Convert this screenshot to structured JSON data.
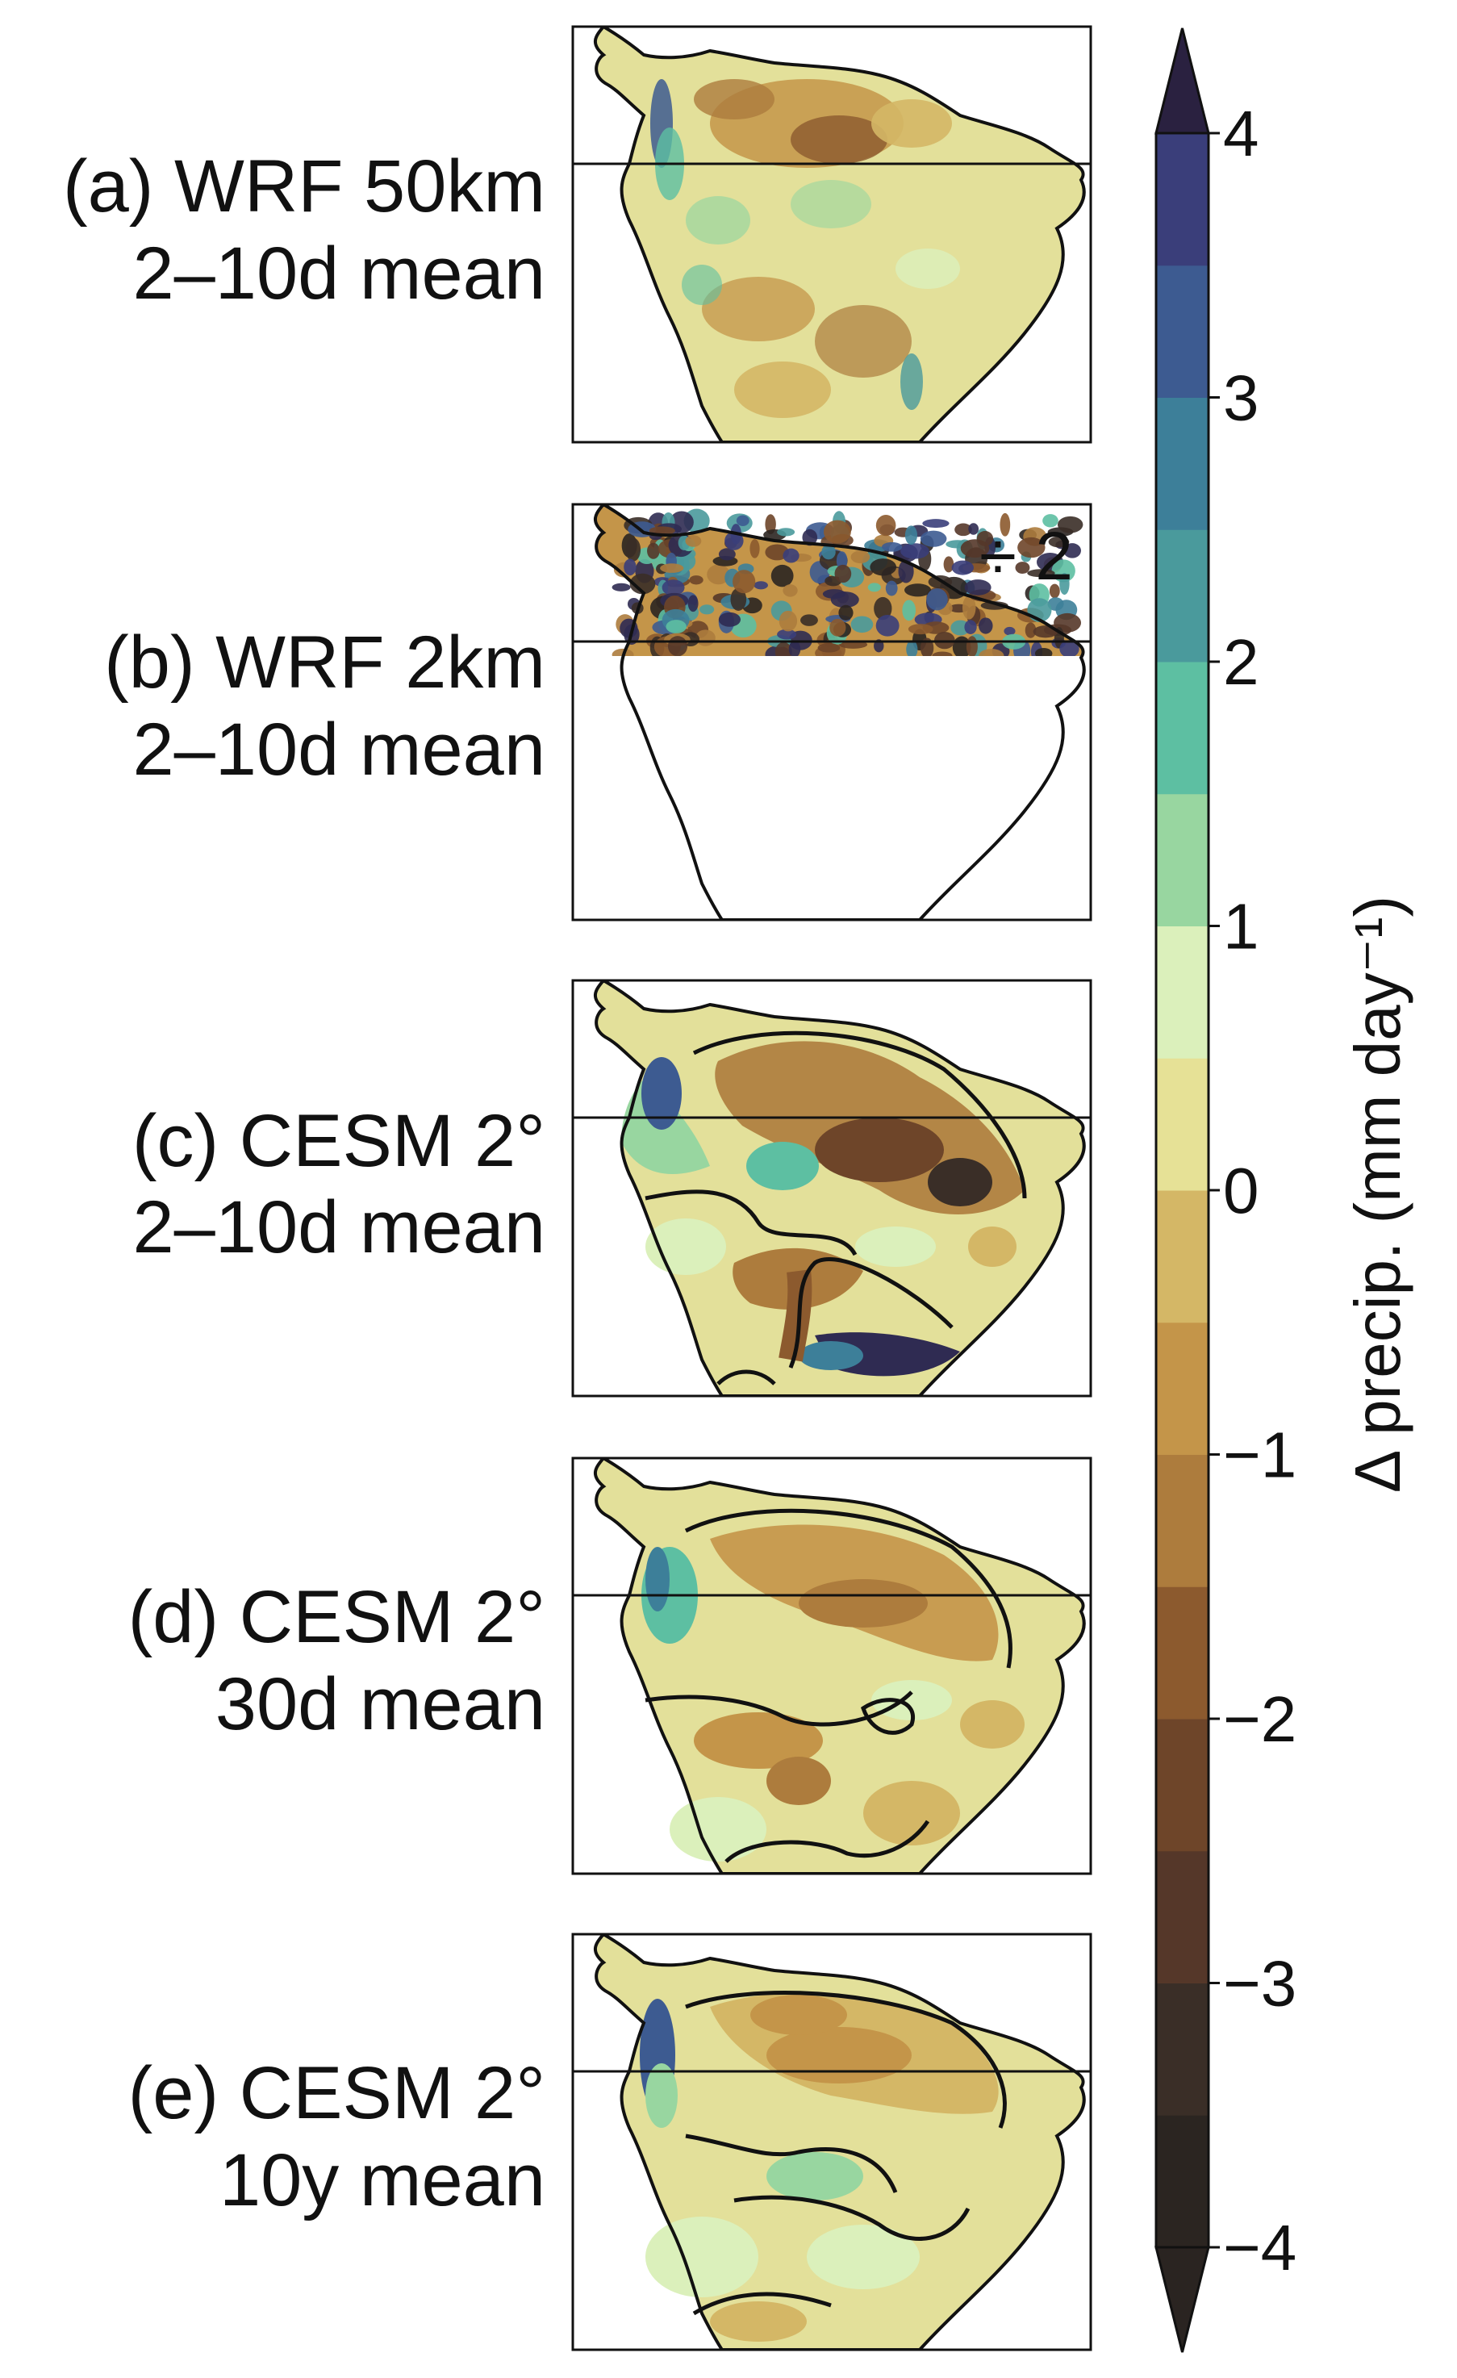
{
  "panels": [
    {
      "id": "a",
      "line1": "(a) WRF 50km",
      "line2": "2–10d mean",
      "annotation": ""
    },
    {
      "id": "b",
      "line1": "(b) WRF 2km",
      "line2": "2–10d mean",
      "annotation": "÷ 2"
    },
    {
      "id": "c",
      "line1": "(c) CESM 2°",
      "line2": "2–10d mean",
      "annotation": ""
    },
    {
      "id": "d",
      "line1": "(d) CESM 2°",
      "line2": "30d mean",
      "annotation": ""
    },
    {
      "id": "e",
      "line1": "(e) CESM 2°",
      "line2": "10y mean",
      "annotation": ""
    }
  ],
  "colorbar": {
    "label": "Δ precip. (mm day⁻¹)",
    "min": -4,
    "max": 4,
    "step": 0.5,
    "extend": "both",
    "ticks": [
      {
        "value": 4,
        "label": "4"
      },
      {
        "value": 3,
        "label": "3"
      },
      {
        "value": 2,
        "label": "2"
      },
      {
        "value": 1,
        "label": "1"
      },
      {
        "value": 0,
        "label": "0"
      },
      {
        "value": -1,
        "label": "−1"
      },
      {
        "value": -2,
        "label": "−2"
      },
      {
        "value": -3,
        "label": "−3"
      },
      {
        "value": -4,
        "label": "−4"
      }
    ],
    "colors": [
      "#2b2521",
      "#3a2e27",
      "#553729",
      "#6e4529",
      "#8c5a2e",
      "#ad7c3d",
      "#c49549",
      "#d4b766",
      "#e6e196",
      "#dbf0bb",
      "#98d6a0",
      "#5dbfa2",
      "#4a9a9c",
      "#3d7f99",
      "#3d5b91",
      "#3a3e7a",
      "#2f2b52"
    ],
    "over_color": "#2a2140",
    "under_color": "#2a2421"
  },
  "land_color": "#e3e09a",
  "chart_data": {
    "type": "heatmap",
    "variable": "Δ precip.",
    "units": "mm day⁻¹",
    "levels": [
      -4,
      -3.5,
      -3,
      -2.5,
      -2,
      -1.5,
      -1,
      -0.5,
      0,
      0.5,
      1,
      1.5,
      2,
      2.5,
      3,
      3.5,
      4
    ],
    "panels": [
      "(a) WRF 50km 2–10d mean",
      "(b) WRF 2km 2–10d mean",
      "(c) CESM 2° 2–10d mean",
      "(d) CESM 2° 30d mean",
      "(e) CESM 2° 10y mean"
    ]
  }
}
